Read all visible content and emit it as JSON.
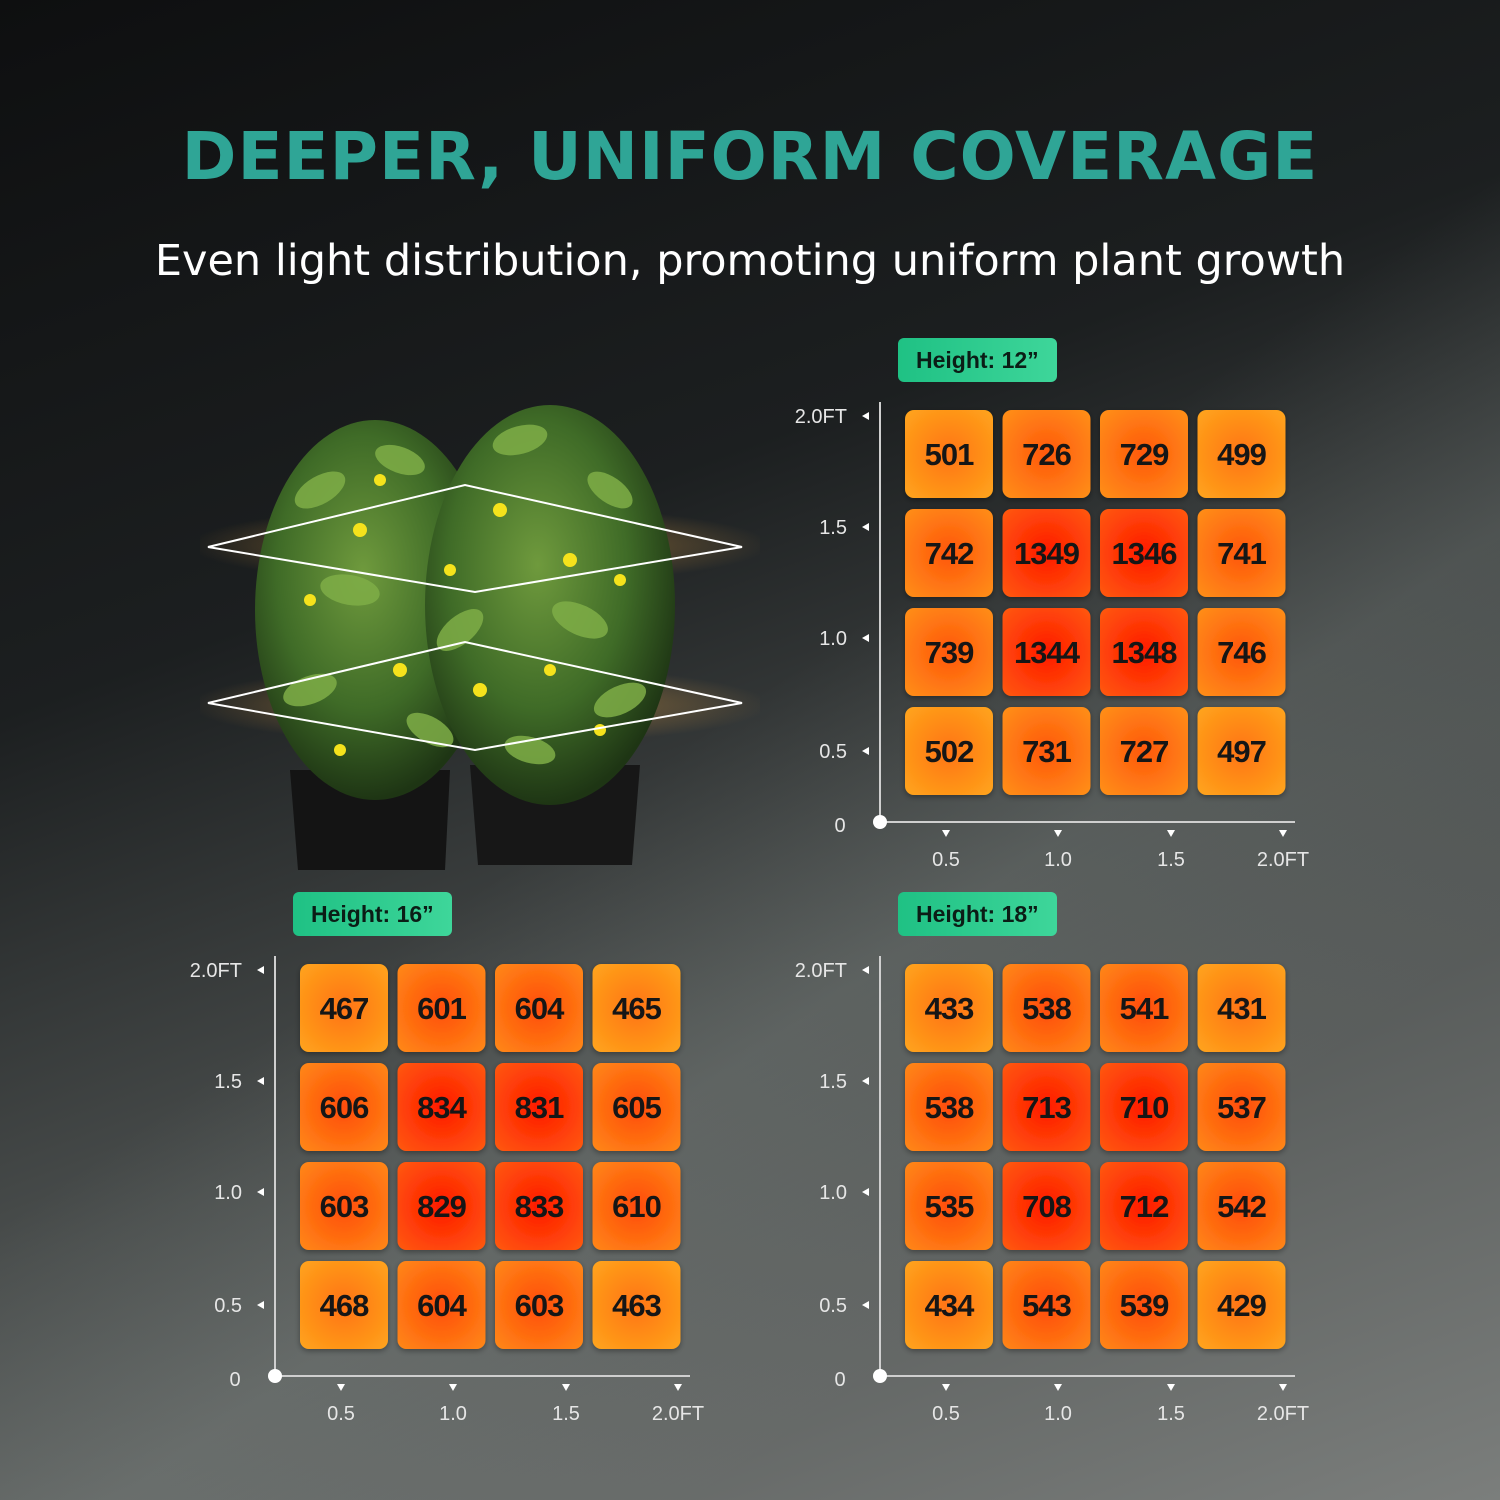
{
  "header": {
    "title": "DEEPER, UNIFORM COVERAGE",
    "subtitle": "Even light distribution, promoting uniform plant growth"
  },
  "illustration": {
    "icon": "potted-plants-with-light-planes-icon"
  },
  "colors": {
    "title": "#2fa596",
    "badge": "#2ccb8c",
    "cell_low": "#ffa51c",
    "cell_high": "#ff1a00"
  },
  "chart_data": [
    {
      "type": "heatmap",
      "title": "Height: 12”",
      "x_ticks": [
        "0.5",
        "1.0",
        "1.5",
        "2.0FT"
      ],
      "y_ticks": [
        "2.0FT",
        "1.5",
        "1.0",
        "0.5"
      ],
      "origin_label": "0",
      "values": [
        [
          501,
          726,
          729,
          499
        ],
        [
          742,
          1349,
          1346,
          741
        ],
        [
          739,
          1344,
          1348,
          746
        ],
        [
          502,
          731,
          727,
          497
        ]
      ],
      "grid": false
    },
    {
      "type": "heatmap",
      "title": "Height: 16”",
      "x_ticks": [
        "0.5",
        "1.0",
        "1.5",
        "2.0FT"
      ],
      "y_ticks": [
        "2.0FT",
        "1.5",
        "1.0",
        "0.5"
      ],
      "origin_label": "0",
      "values": [
        [
          467,
          601,
          604,
          465
        ],
        [
          606,
          834,
          831,
          605
        ],
        [
          603,
          829,
          833,
          610
        ],
        [
          468,
          604,
          603,
          463
        ]
      ],
      "grid": false
    },
    {
      "type": "heatmap",
      "title": "Height: 18”",
      "x_ticks": [
        "0.5",
        "1.0",
        "1.5",
        "2.0FT"
      ],
      "y_ticks": [
        "2.0FT",
        "1.5",
        "1.0",
        "0.5"
      ],
      "origin_label": "0",
      "values": [
        [
          433,
          538,
          541,
          431
        ],
        [
          538,
          713,
          710,
          537
        ],
        [
          535,
          708,
          712,
          542
        ],
        [
          434,
          543,
          539,
          429
        ]
      ],
      "grid": false
    }
  ]
}
